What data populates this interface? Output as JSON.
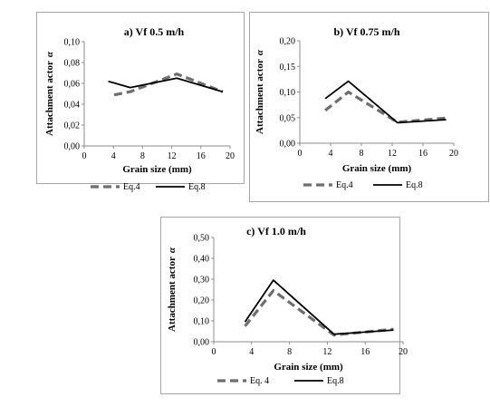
{
  "chart_data": [
    {
      "type": "line",
      "title": "a) Vf 0.5 m/h",
      "ylabel": "Attachment actor",
      "ylabel_symbol": "α",
      "xlabel": "Grain size (mm)",
      "xlim": [
        0,
        20
      ],
      "ylim": [
        0,
        0.1
      ],
      "xticks": [
        "0",
        "4",
        "8",
        "12",
        "16",
        "20"
      ],
      "yticks": [
        "0,00",
        "0,02",
        "0,04",
        "0,06",
        "0,08",
        "0,10"
      ],
      "legend_position": "bottom",
      "series": [
        {
          "name": "Eq.4",
          "style": "dashed",
          "color": "#6e6e6e",
          "points": [
            [
              4.1,
              0.049
            ],
            [
              6.3,
              0.052
            ],
            [
              12.7,
              0.069
            ],
            [
              19.0,
              0.052
            ]
          ]
        },
        {
          "name": "Eq.8",
          "style": "solid",
          "color": "#000000",
          "points": [
            [
              3.3,
              0.062
            ],
            [
              6.3,
              0.056
            ],
            [
              12.7,
              0.065
            ],
            [
              19.0,
              0.052
            ]
          ]
        }
      ]
    },
    {
      "type": "line",
      "title": "b) Vf  0.75 m/h",
      "ylabel": "Attachment actor",
      "ylabel_symbol": "α",
      "xlabel": "Grain size (mm)",
      "xlim": [
        0,
        20
      ],
      "ylim": [
        0,
        0.2
      ],
      "xticks": [
        "0",
        "4",
        "8",
        "12",
        "16",
        "20"
      ],
      "yticks": [
        "0,00",
        "0,05",
        "0,10",
        "0,15",
        "0,20"
      ],
      "legend_position": "bottom",
      "series": [
        {
          "name": "Eq.4",
          "style": "dashed",
          "color": "#6e6e6e",
          "points": [
            [
              3.3,
              0.064
            ],
            [
              6.3,
              0.1
            ],
            [
              12.7,
              0.041
            ],
            [
              19.0,
              0.049
            ]
          ]
        },
        {
          "name": "Eq.8",
          "style": "solid",
          "color": "#000000",
          "points": [
            [
              3.3,
              0.087
            ],
            [
              6.3,
              0.121
            ],
            [
              12.7,
              0.04
            ],
            [
              19.0,
              0.046
            ]
          ]
        }
      ]
    },
    {
      "type": "line",
      "title": "c) Vf 1.0 m/h",
      "ylabel": "Attachment actor",
      "ylabel_symbol": "α",
      "xlabel": "Grain size (mm)",
      "xlim": [
        0,
        20
      ],
      "ylim": [
        0,
        0.5
      ],
      "xticks": [
        "0",
        "4",
        "8",
        "12",
        "16",
        "20"
      ],
      "yticks": [
        "0,00",
        "0,10",
        "0,20",
        "0,30",
        "0,40",
        "0,50"
      ],
      "legend_position": "bottom",
      "series": [
        {
          "name": "Eq. 4",
          "style": "dashed",
          "color": "#6e6e6e",
          "points": [
            [
              3.3,
              0.075
            ],
            [
              6.3,
              0.245
            ],
            [
              12.7,
              0.032
            ],
            [
              19.0,
              0.06
            ]
          ]
        },
        {
          "name": "Eq.8",
          "style": "solid",
          "color": "#000000",
          "points": [
            [
              3.3,
              0.095
            ],
            [
              6.3,
              0.295
            ],
            [
              12.7,
              0.036
            ],
            [
              19.0,
              0.056
            ]
          ]
        }
      ]
    }
  ]
}
